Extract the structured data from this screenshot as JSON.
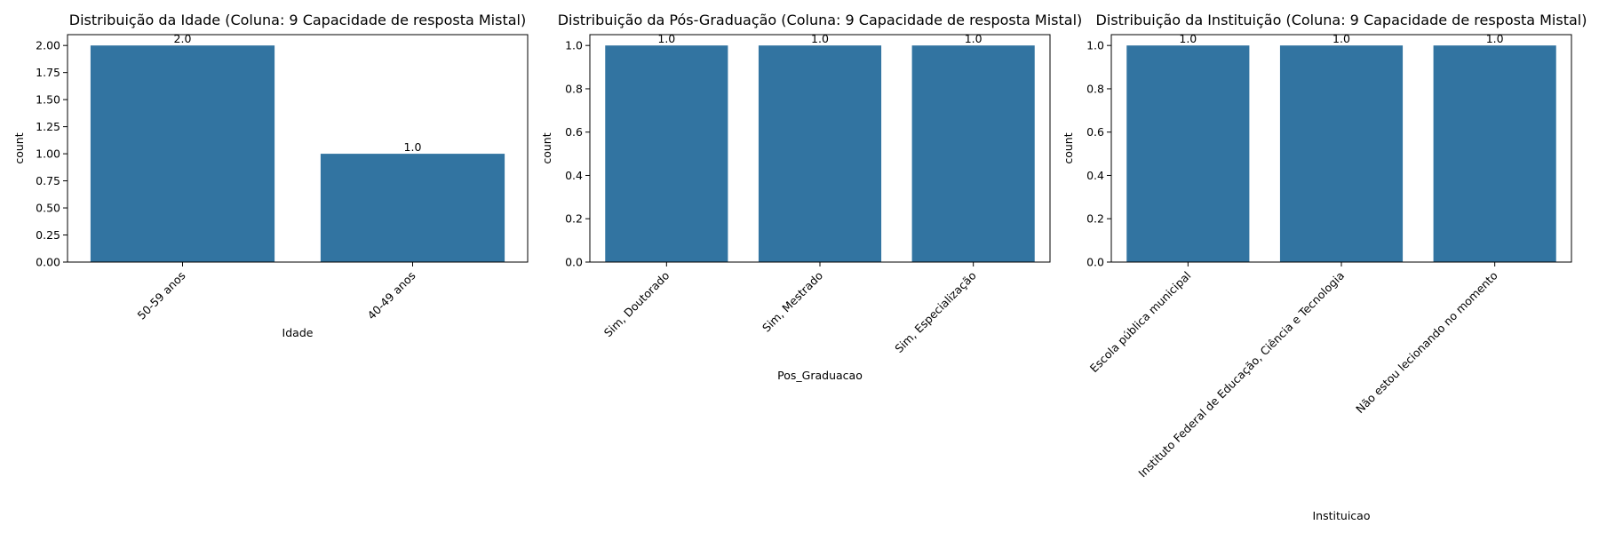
{
  "colors": {
    "bar": "#3274a1",
    "axis": "#000000",
    "background": "#ffffff"
  },
  "chart_data": [
    {
      "type": "bar",
      "title": "Distribuição da Idade (Coluna: 9 Capacidade de resposta Mistal)",
      "xlabel": "Idade",
      "ylabel": "count",
      "categories": [
        "50-59 anos",
        "40-49 anos"
      ],
      "values": [
        2,
        1
      ],
      "data_labels": [
        "2.0",
        "1.0"
      ],
      "yticks": [
        "0.00",
        "0.25",
        "0.50",
        "0.75",
        "1.00",
        "1.25",
        "1.50",
        "1.75",
        "2.00"
      ],
      "ylim": [
        0,
        2.1
      ],
      "grid": false,
      "xtick_rotation": 45
    },
    {
      "type": "bar",
      "title": "Distribuição da Pós-Graduação (Coluna: 9 Capacidade de resposta Mistal)",
      "xlabel": "Pos_Graduacao",
      "ylabel": "count",
      "categories": [
        "Sim, Doutorado",
        "Sim, Mestrado",
        "Sim, Especialização"
      ],
      "values": [
        1,
        1,
        1
      ],
      "data_labels": [
        "1.0",
        "1.0",
        "1.0"
      ],
      "yticks": [
        "0.0",
        "0.2",
        "0.4",
        "0.6",
        "0.8",
        "1.0"
      ],
      "ylim": [
        0,
        1.05
      ],
      "grid": false,
      "xtick_rotation": 45
    },
    {
      "type": "bar",
      "title": "Distribuição da Instituição (Coluna: 9 Capacidade de resposta Mistal)",
      "xlabel": "Instituicao",
      "ylabel": "count",
      "categories": [
        "Escola pública municipal",
        "Instituto Federal de Educação, Ciência e Tecnologia",
        "Não estou lecionando no momento"
      ],
      "values": [
        1,
        1,
        1
      ],
      "data_labels": [
        "1.0",
        "1.0",
        "1.0"
      ],
      "yticks": [
        "0.0",
        "0.2",
        "0.4",
        "0.6",
        "0.8",
        "1.0"
      ],
      "ylim": [
        0,
        1.05
      ],
      "grid": false,
      "xtick_rotation": 45
    }
  ]
}
